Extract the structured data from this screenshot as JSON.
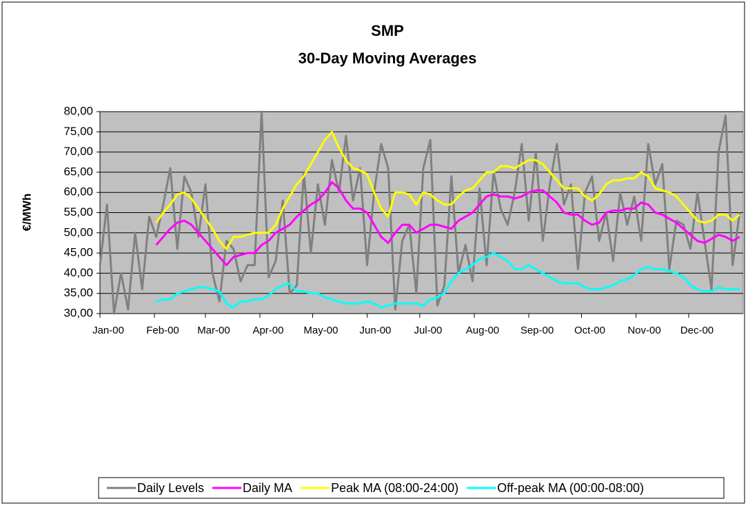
{
  "chart_data": {
    "type": "line",
    "title": "SMP",
    "subtitle": "30-Day Moving Averages",
    "y_label": "€/MWh",
    "x": [
      0,
      4,
      8,
      12,
      16,
      20,
      24,
      28,
      32,
      36,
      40,
      44,
      48,
      52,
      56,
      60,
      64,
      68,
      72,
      76,
      80,
      84,
      88,
      92,
      96,
      100,
      104,
      108,
      112,
      116,
      120,
      124,
      128,
      132,
      136,
      140,
      144,
      148,
      152,
      156,
      160,
      164,
      168,
      172,
      176,
      180,
      184,
      188,
      192,
      196,
      200,
      204,
      208,
      212,
      216,
      220,
      224,
      228,
      232,
      236,
      240,
      244,
      248,
      252,
      256,
      260,
      264,
      268,
      272,
      276,
      280,
      284,
      288,
      292,
      296,
      300,
      304,
      308,
      312,
      316,
      320,
      324,
      328,
      332,
      336,
      340,
      344,
      348,
      352,
      356,
      360,
      364
    ],
    "xlim": [
      0,
      366
    ],
    "xticks": [
      {
        "value": 0,
        "label": "Jan-00"
      },
      {
        "value": 31,
        "label": "Feb-00"
      },
      {
        "value": 60,
        "label": "Mar-00"
      },
      {
        "value": 91,
        "label": "Apr-00"
      },
      {
        "value": 121,
        "label": "May-00"
      },
      {
        "value": 152,
        "label": "Jun-00"
      },
      {
        "value": 182,
        "label": "Jul-00"
      },
      {
        "value": 213,
        "label": "Aug-00"
      },
      {
        "value": 244,
        "label": "Sep-00"
      },
      {
        "value": 274,
        "label": "Oct-00"
      },
      {
        "value": 305,
        "label": "Nov-00"
      },
      {
        "value": 335,
        "label": "Dec-00"
      }
    ],
    "ylim": [
      30,
      80
    ],
    "yticks": [
      {
        "value": 30,
        "label": "30,00"
      },
      {
        "value": 35,
        "label": "35,00"
      },
      {
        "value": 40,
        "label": "40,00"
      },
      {
        "value": 45,
        "label": "45,00"
      },
      {
        "value": 50,
        "label": "50,00"
      },
      {
        "value": 55,
        "label": "55,00"
      },
      {
        "value": 60,
        "label": "60,00"
      },
      {
        "value": 65,
        "label": "65,00"
      },
      {
        "value": 70,
        "label": "70,00"
      },
      {
        "value": 75,
        "label": "75,00"
      },
      {
        "value": 80,
        "label": "80,00"
      }
    ],
    "grid": true,
    "series": [
      {
        "name": "Daily Levels",
        "color": "#808080",
        "values": [
          42,
          57,
          30,
          40,
          31,
          50,
          36,
          54,
          49,
          57,
          66,
          46,
          64,
          60,
          49,
          62,
          40,
          33,
          48,
          46,
          38,
          42,
          42,
          80,
          39,
          43,
          58,
          35,
          37,
          65,
          45,
          62,
          52,
          68,
          60,
          74,
          58,
          66,
          42,
          60,
          72,
          66,
          31,
          48,
          52,
          35,
          66,
          73,
          32,
          37,
          64,
          40,
          47,
          38,
          61,
          42,
          65,
          56,
          52,
          60,
          72,
          53,
          70,
          48,
          62,
          72,
          57,
          62,
          41,
          60,
          64,
          48,
          55,
          43,
          60,
          52,
          59,
          48,
          72,
          62,
          67,
          41,
          53,
          52,
          46,
          60,
          48,
          36,
          70,
          79,
          42,
          55
        ]
      },
      {
        "name": "Daily MA",
        "color": "#ff00ff",
        "values": [
          null,
          null,
          null,
          null,
          null,
          null,
          null,
          null,
          47,
          49,
          51,
          52.5,
          53,
          52,
          50,
          48,
          46,
          44,
          42,
          44,
          44.5,
          45,
          45,
          47,
          48,
          50,
          51,
          52,
          54,
          55.5,
          57,
          58,
          60,
          62.5,
          61,
          58,
          56,
          56,
          55,
          52,
          49,
          47.5,
          50,
          52,
          52,
          50,
          51,
          52,
          52,
          51.5,
          51,
          53,
          54,
          55,
          57,
          59,
          59.5,
          59,
          59,
          58.5,
          59,
          60,
          60.5,
          60.5,
          59,
          57.5,
          55,
          54.5,
          54.5,
          53,
          52,
          52.5,
          55,
          55.5,
          55.5,
          56,
          56,
          57.5,
          57,
          55,
          54.5,
          53.5,
          52.5,
          51,
          49.5,
          48,
          47.5,
          48.5,
          49.5,
          49,
          48,
          49
        ]
      },
      {
        "name": "Peak MA (08:00-24:00)",
        "color": "#ffff00",
        "values": [
          null,
          null,
          null,
          null,
          null,
          null,
          null,
          null,
          52.5,
          55,
          57,
          59.5,
          60,
          58.5,
          56,
          53.5,
          51,
          48,
          46,
          49,
          49,
          49.5,
          50,
          50,
          50,
          52,
          56,
          59,
          62,
          64,
          67,
          70,
          73,
          75,
          71,
          68,
          66,
          65.5,
          64.5,
          60,
          56,
          54,
          60,
          60,
          59.5,
          57,
          60,
          59.5,
          58,
          57,
          57,
          59,
          60.5,
          61,
          63,
          65,
          65,
          66.5,
          66.5,
          66,
          67,
          68,
          68,
          67,
          65,
          63,
          61,
          61,
          61,
          59,
          58,
          59.5,
          62,
          63,
          63,
          63.5,
          63.5,
          65,
          64,
          61,
          60.5,
          60,
          59,
          57,
          55,
          53,
          52.5,
          53,
          54.5,
          54.5,
          53,
          54.5
        ]
      },
      {
        "name": "Off-peak MA (00:00-08:00)",
        "color": "#00ffff",
        "values": [
          null,
          null,
          null,
          null,
          null,
          null,
          null,
          null,
          33,
          33.5,
          33.5,
          35,
          35.5,
          36,
          36.5,
          36.5,
          36,
          35.5,
          32.5,
          31.5,
          33,
          33,
          33.5,
          33.5,
          34.5,
          36,
          37,
          37.5,
          35.5,
          35.5,
          35,
          35,
          34,
          33.5,
          33,
          32.5,
          32.5,
          32.5,
          33,
          32.5,
          31.5,
          32,
          32.5,
          32.5,
          32.5,
          32.5,
          32,
          33.5,
          34,
          35,
          38,
          40,
          41,
          42,
          43.5,
          44,
          45,
          44,
          43,
          41,
          41,
          42,
          41,
          40,
          39,
          38,
          37.5,
          37.5,
          37.5,
          36.5,
          36,
          36,
          36.5,
          37,
          38,
          38.5,
          39.5,
          41,
          41.5,
          41,
          41,
          40.5,
          40,
          39,
          37,
          36,
          35.5,
          35.5,
          36.5,
          36,
          36,
          36
        ]
      }
    ]
  }
}
